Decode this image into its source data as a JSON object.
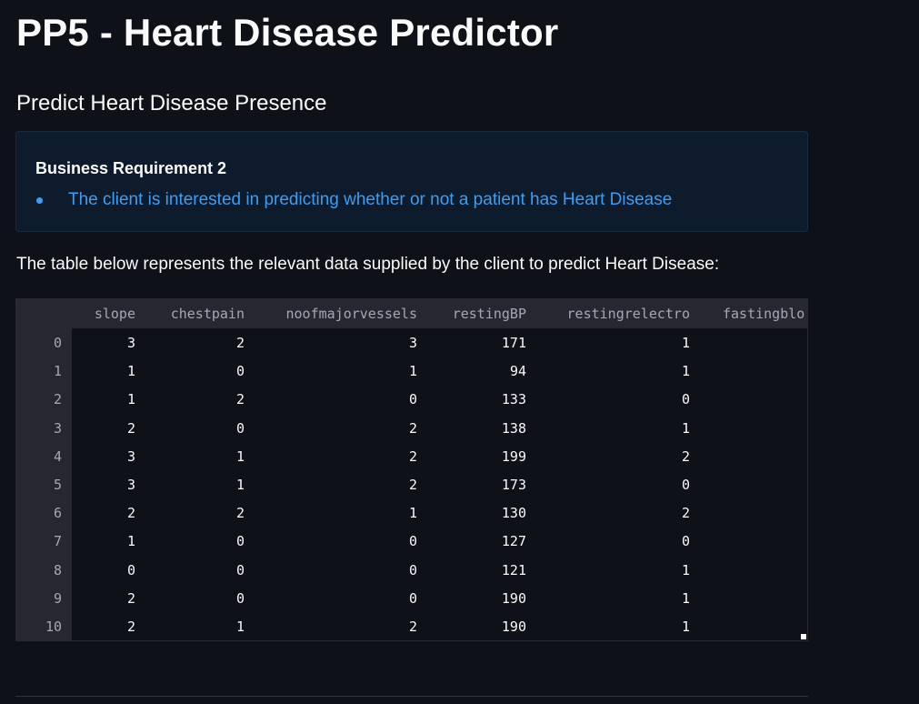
{
  "page": {
    "title": "PP5 - Heart Disease Predictor",
    "subtitle": "Predict Heart Disease Presence",
    "info": {
      "heading": "Business Requirement 2",
      "bullet": "The client is interested in predicting whether or not a patient has Heart Disease"
    },
    "description": "The table below represents the relevant data supplied by the client to predict Heart Disease:"
  },
  "table": {
    "columns": [
      "slope",
      "chestpain",
      "noofmajorvessels",
      "restingBP",
      "restingrelectro",
      "fastingblo"
    ],
    "rows": [
      {
        "index": "0",
        "values": [
          "3",
          "2",
          "3",
          "171",
          "1"
        ]
      },
      {
        "index": "1",
        "values": [
          "1",
          "0",
          "1",
          "94",
          "1"
        ]
      },
      {
        "index": "2",
        "values": [
          "1",
          "2",
          "0",
          "133",
          "0"
        ]
      },
      {
        "index": "3",
        "values": [
          "2",
          "0",
          "2",
          "138",
          "1"
        ]
      },
      {
        "index": "4",
        "values": [
          "3",
          "1",
          "2",
          "199",
          "2"
        ]
      },
      {
        "index": "5",
        "values": [
          "3",
          "1",
          "2",
          "173",
          "0"
        ]
      },
      {
        "index": "6",
        "values": [
          "2",
          "2",
          "1",
          "130",
          "2"
        ]
      },
      {
        "index": "7",
        "values": [
          "1",
          "0",
          "0",
          "127",
          "0"
        ]
      },
      {
        "index": "8",
        "values": [
          "0",
          "0",
          "0",
          "121",
          "1"
        ]
      },
      {
        "index": "9",
        "values": [
          "2",
          "0",
          "0",
          "190",
          "1"
        ]
      },
      {
        "index": "10",
        "values": [
          "2",
          "1",
          "2",
          "190",
          "1"
        ]
      }
    ]
  },
  "colors": {
    "background": "#0e1117",
    "info_bg": "#0e1b2d",
    "info_text": "#3d9df3",
    "header_bg": "#262730"
  }
}
